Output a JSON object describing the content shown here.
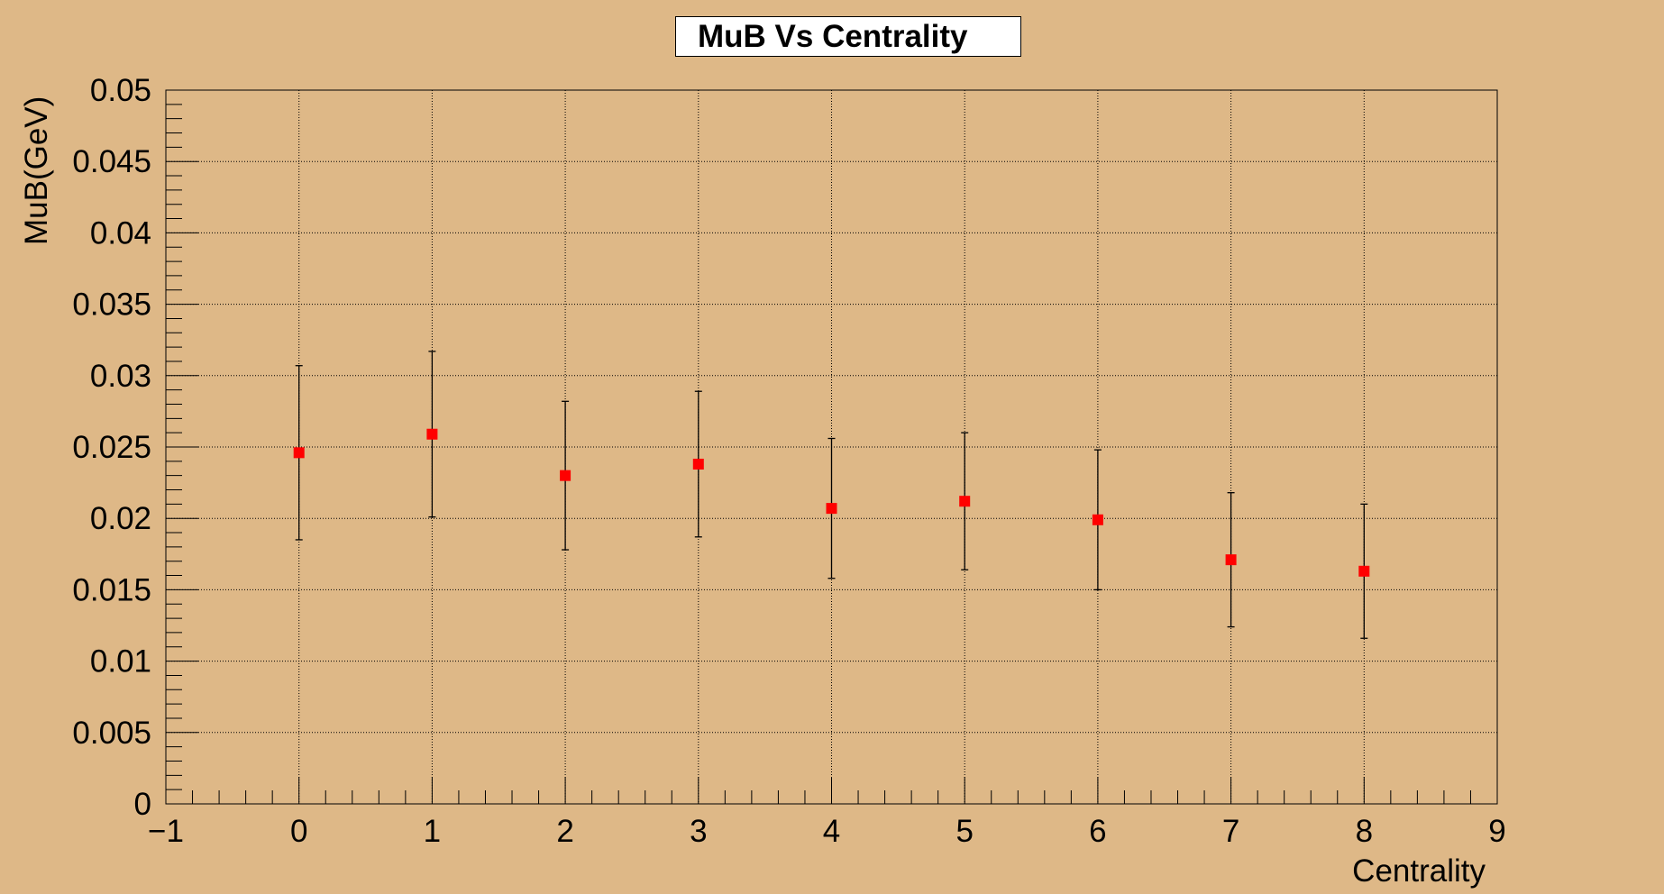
{
  "chart_data": {
    "type": "scatter",
    "title": "MuB Vs Centrality",
    "xlabel": "Centrality",
    "ylabel": "MuB(GeV)",
    "xlim": [
      -1,
      9
    ],
    "ylim": [
      0,
      0.05
    ],
    "x_ticks": [
      "−1",
      "0",
      "1",
      "2",
      "3",
      "4",
      "5",
      "6",
      "7",
      "8",
      "9"
    ],
    "y_ticks": [
      "0",
      "0.005",
      "0.01",
      "0.015",
      "0.02",
      "0.025",
      "0.03",
      "0.035",
      "0.04",
      "0.045",
      "0.05"
    ],
    "grid": true,
    "series": [
      {
        "x": [
          0,
          1,
          2,
          3,
          4,
          5,
          6,
          7,
          8
        ],
        "y": [
          0.0246,
          0.0259,
          0.023,
          0.0238,
          0.0207,
          0.0212,
          0.0199,
          0.0171,
          0.0163
        ],
        "yerr": [
          0.0061,
          0.0058,
          0.0052,
          0.0051,
          0.0049,
          0.0048,
          0.0049,
          0.0047,
          0.0047
        ]
      }
    ]
  },
  "colors": {
    "background": "#DEB887",
    "marker": "#FF0000",
    "axis": "#000000"
  }
}
